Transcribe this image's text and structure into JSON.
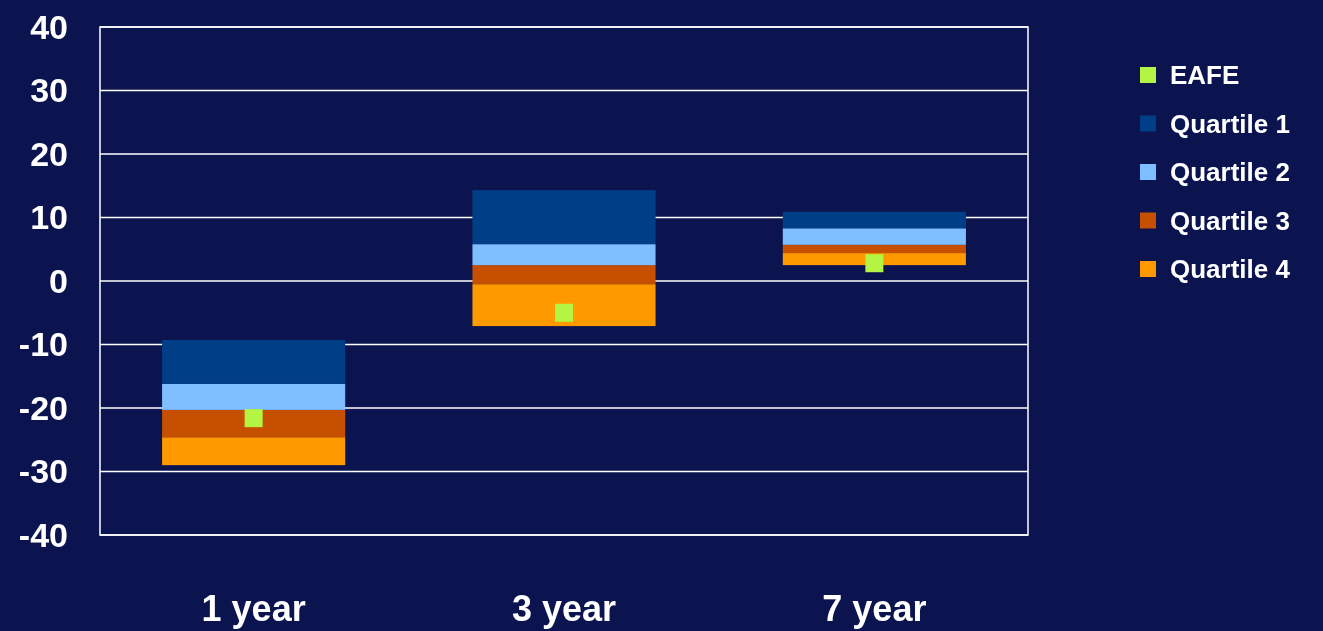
{
  "chart_data": {
    "type": "bar",
    "categories": [
      "1 year",
      "3 year",
      "7 year"
    ],
    "series": [
      {
        "name": "EAFE",
        "type": "scatter",
        "color": "#b3f542",
        "x": [
          "1 year",
          "3 year",
          "7 year"
        ],
        "values": [
          -21.6,
          -5.0,
          2.8
        ]
      },
      {
        "name": "Quartile 4",
        "color": "#ff9900",
        "base": [
          -29.0,
          -7.1,
          2.5
        ],
        "values": [
          4.4,
          6.6,
          1.9
        ]
      },
      {
        "name": "Quartile 3",
        "color": "#c65000",
        "base": [
          -24.6,
          -0.5,
          4.4
        ],
        "values": [
          4.3,
          3.0,
          1.3
        ]
      },
      {
        "name": "Quartile 2",
        "color": "#80bfff",
        "base": [
          -20.3,
          2.5,
          5.7
        ],
        "values": [
          4.1,
          3.3,
          2.6
        ]
      },
      {
        "name": "Quartile 1",
        "color": "#003f87",
        "base": [
          -16.2,
          5.8,
          8.3
        ],
        "values": [
          6.9,
          8.5,
          2.6
        ]
      }
    ],
    "ylim": [
      -40,
      40
    ],
    "yticks": [
      -40,
      -30,
      -20,
      -10,
      0,
      10,
      20,
      30,
      40
    ],
    "grid": "y",
    "legend": "right",
    "marker": "square"
  }
}
